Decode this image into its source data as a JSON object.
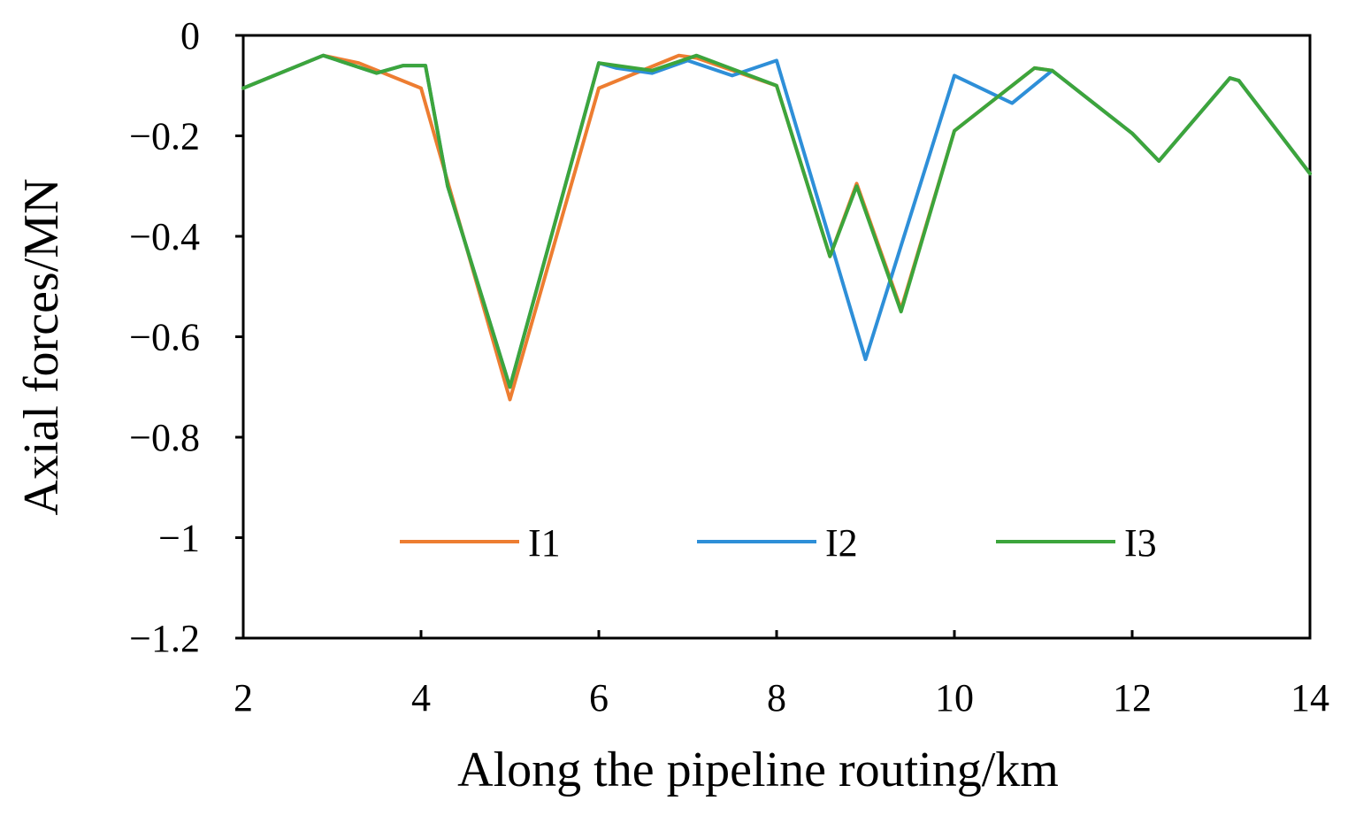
{
  "chart_data": {
    "type": "line",
    "xlabel": "Along the pipeline routing/km",
    "ylabel": "Axial forces/MN",
    "xlim": [
      2,
      14
    ],
    "ylim": [
      -1.2,
      0
    ],
    "xticks": [
      2,
      4,
      6,
      8,
      10,
      12,
      14
    ],
    "xtick_labels": [
      "2",
      "4",
      "6",
      "8",
      "10",
      "12",
      "14"
    ],
    "yticks": [
      0,
      -0.2,
      -0.4,
      -0.6,
      -0.8,
      -1,
      -1.2
    ],
    "ytick_labels": [
      "0",
      "−0.2",
      "−0.4",
      "−0.6",
      "−0.8",
      "−1",
      "−1.2"
    ],
    "grid": false,
    "legend_position": "lower-center",
    "series": [
      {
        "name": "I1",
        "color": "#ED7D31",
        "x": [
          2,
          2.9,
          3.3,
          4.0,
          5.0,
          6.0,
          6.9,
          7.1,
          8.0,
          8.6,
          8.9,
          9.4,
          10.0,
          10.9,
          11.1,
          12.0,
          12.3,
          13.1,
          13.2,
          14.0
        ],
        "y": [
          -0.105,
          -0.04,
          -0.055,
          -0.105,
          -0.725,
          -0.105,
          -0.04,
          -0.045,
          -0.1,
          -0.44,
          -0.295,
          -0.545,
          -0.19,
          -0.065,
          -0.07,
          -0.195,
          -0.25,
          -0.085,
          -0.09,
          -0.275
        ]
      },
      {
        "name": "I2",
        "color": "#2E8FD8",
        "x": [
          2,
          2.9,
          3.5,
          3.8,
          4.05,
          4.3,
          5.0,
          6.0,
          6.2,
          6.6,
          7.0,
          7.5,
          8.0,
          9.0,
          10.0,
          10.65,
          11.1,
          12.0,
          12.3,
          13.1,
          13.2,
          14.0
        ],
        "y": [
          -0.105,
          -0.04,
          -0.075,
          -0.06,
          -0.06,
          -0.3,
          -0.7,
          -0.055,
          -0.065,
          -0.075,
          -0.05,
          -0.08,
          -0.05,
          -0.645,
          -0.08,
          -0.135,
          -0.07,
          -0.195,
          -0.25,
          -0.085,
          -0.09,
          -0.275
        ]
      },
      {
        "name": "I3",
        "color": "#3CA53C",
        "x": [
          2,
          2.9,
          3.5,
          3.8,
          4.05,
          4.3,
          5.0,
          6.0,
          6.2,
          6.6,
          7.1,
          8.0,
          8.6,
          8.9,
          9.4,
          10.0,
          10.9,
          11.1,
          12.0,
          12.3,
          13.1,
          13.2,
          14.0
        ],
        "y": [
          -0.105,
          -0.04,
          -0.075,
          -0.06,
          -0.06,
          -0.3,
          -0.7,
          -0.055,
          -0.06,
          -0.07,
          -0.04,
          -0.1,
          -0.44,
          -0.3,
          -0.55,
          -0.19,
          -0.065,
          -0.07,
          -0.195,
          -0.25,
          -0.085,
          -0.09,
          -0.275
        ]
      }
    ]
  }
}
